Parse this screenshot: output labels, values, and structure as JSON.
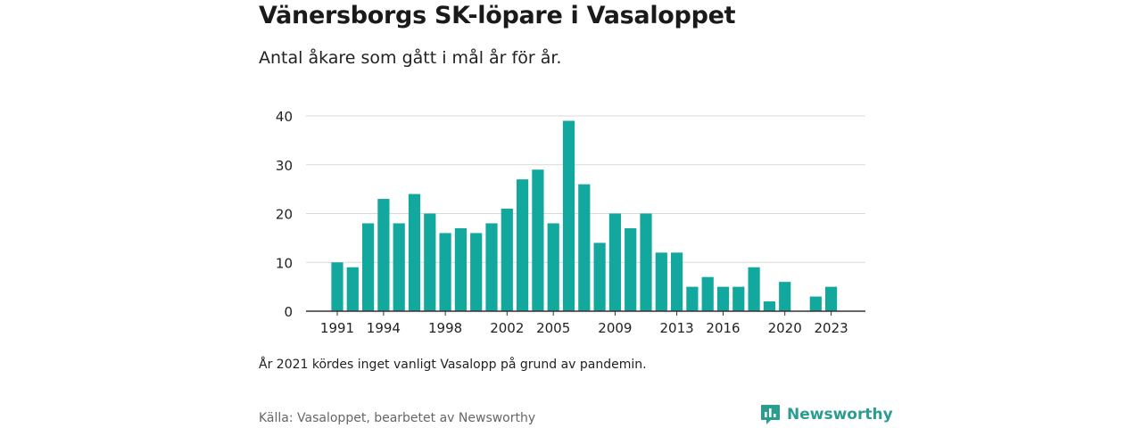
{
  "title": "Vänersborgs SK-löpare i Vasaloppet",
  "subtitle": "Antal åkare som gått i mål år för år.",
  "note": "År 2021 kördes inget vanligt Vasalopp på grund av pandemin.",
  "source": "Källa: Vasaloppet, bearbetet av Newsworthy",
  "brand": {
    "name": "Newsworthy",
    "icon": "newsworthy-logo-icon"
  },
  "colors": {
    "bar": "#12a89d",
    "grid": "#d9d9d9",
    "axis": "#333333",
    "brand": "#2a9d8f"
  },
  "chart_data": {
    "type": "bar",
    "x": [
      1991,
      1992,
      1993,
      1994,
      1995,
      1996,
      1997,
      1998,
      1999,
      2000,
      2001,
      2002,
      2003,
      2004,
      2005,
      2006,
      2007,
      2008,
      2009,
      2010,
      2011,
      2012,
      2013,
      2014,
      2015,
      2016,
      2017,
      2018,
      2019,
      2020,
      2021,
      2022,
      2023
    ],
    "values": [
      10,
      9,
      18,
      23,
      18,
      24,
      20,
      16,
      17,
      16,
      18,
      21,
      27,
      29,
      18,
      39,
      26,
      14,
      20,
      17,
      20,
      12,
      12,
      5,
      7,
      5,
      5,
      9,
      2,
      6,
      null,
      3,
      5
    ],
    "xticks": [
      1991,
      1994,
      1998,
      2002,
      2005,
      2009,
      2013,
      2016,
      2020,
      2023
    ],
    "yticks": [
      0,
      10,
      20,
      30,
      40
    ],
    "ylim": [
      0,
      40
    ],
    "grid": true
  }
}
